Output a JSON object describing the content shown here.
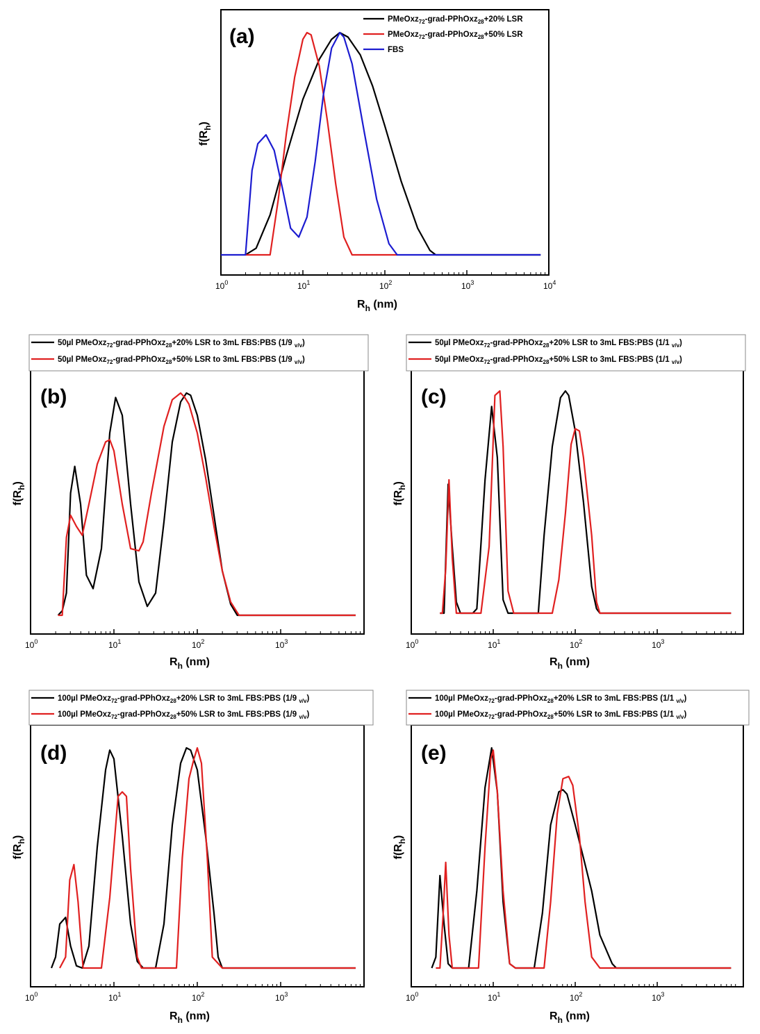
{
  "chart_data": [
    {
      "id": "a",
      "type": "line",
      "panel_label": "(a)",
      "xscale": "log",
      "xlim_exp": [
        0,
        4
      ],
      "ylim": [
        0,
        1
      ],
      "xlabel": {
        "main": "R",
        "sub": "h",
        "unit": " (nm)"
      },
      "ylabel": {
        "main": "f(R",
        "sub": "h",
        "close": ")"
      },
      "ticks": [
        "10^0",
        "10^1",
        "10^2",
        "10^3",
        "10^4"
      ],
      "legend_position": "top-right",
      "legend_framed": false,
      "series": [
        {
          "color": "#000000",
          "legend": {
            "t1": "PMeOxz",
            "s1": "72",
            "t2": "-grad-PPhOxz",
            "s2": "28",
            "t3": "+20% LSR",
            "s3": "",
            "t4": ""
          },
          "x": [
            0.3,
            0.43,
            0.6,
            0.8,
            1.0,
            1.2,
            1.35,
            1.45,
            1.55,
            1.7,
            1.85,
            2.0,
            2.2,
            2.4,
            2.55,
            2.62,
            3.9
          ],
          "y": [
            0.0,
            0.03,
            0.18,
            0.45,
            0.7,
            0.88,
            0.97,
            1.0,
            0.98,
            0.9,
            0.76,
            0.58,
            0.33,
            0.12,
            0.02,
            0.0,
            0.0
          ]
        },
        {
          "color": "#e02020",
          "legend": {
            "t1": "PMeOxz",
            "s1": "72",
            "t2": "-grad-PPhOxz",
            "s2": "28",
            "t3": "+50% LSR",
            "s3": "",
            "t4": ""
          },
          "x": [
            0.3,
            0.6,
            0.7,
            0.8,
            0.9,
            1.0,
            1.05,
            1.1,
            1.2,
            1.3,
            1.4,
            1.5,
            1.6,
            1.62,
            2.15
          ],
          "y": [
            0.0,
            0.0,
            0.25,
            0.55,
            0.8,
            0.97,
            1.0,
            0.99,
            0.85,
            0.6,
            0.32,
            0.08,
            0.0,
            0.0,
            0.0
          ]
        },
        {
          "color": "#1c1cd0",
          "legend": {
            "t1": "FBS",
            "s1": "",
            "t2": "",
            "s2": "",
            "t3": "",
            "s3": "",
            "t4": ""
          },
          "x": [
            0.0,
            0.3,
            0.38,
            0.45,
            0.55,
            0.65,
            0.75,
            0.85,
            0.95,
            1.05,
            1.15,
            1.25,
            1.35,
            1.45,
            1.5,
            1.6,
            1.75,
            1.9,
            2.05,
            2.15,
            3.9
          ],
          "y": [
            0.0,
            0.0,
            0.38,
            0.5,
            0.54,
            0.47,
            0.3,
            0.12,
            0.08,
            0.17,
            0.42,
            0.72,
            0.93,
            1.0,
            0.98,
            0.86,
            0.55,
            0.25,
            0.05,
            0.0,
            0.0
          ]
        }
      ]
    },
    {
      "id": "b",
      "type": "line",
      "panel_label": "(b)",
      "xscale": "log",
      "xlim_exp": [
        0,
        4
      ],
      "ylim": [
        0,
        1
      ],
      "xlabel": {
        "main": "R",
        "sub": "h",
        "unit": " (nm)"
      },
      "ylabel": {
        "main": "f(R",
        "sub": "h",
        "close": ")"
      },
      "ticks": [
        "10^0",
        "10^1",
        "10^2",
        "10^3"
      ],
      "legend_position": "top-left-outside",
      "legend_framed": true,
      "series": [
        {
          "color": "#000000",
          "legend": {
            "t1": "50µl PMeOxz",
            "s1": "72",
            "t2": "-grad-PPhOxz",
            "s2": "28",
            "t3": "+20% LSR to 3mL FBS:PBS (1/9 ",
            "s3": "v/v",
            "t4": ")"
          },
          "x": [
            0.33,
            0.38,
            0.43,
            0.48,
            0.53,
            0.6,
            0.67,
            0.75,
            0.85,
            0.95,
            1.02,
            1.1,
            1.2,
            1.3,
            1.4,
            1.5,
            1.6,
            1.7,
            1.8,
            1.87,
            1.92,
            2.0,
            2.1,
            2.2,
            2.3,
            2.4,
            2.48,
            2.55,
            3.9
          ],
          "y": [
            0.0,
            0.02,
            0.1,
            0.55,
            0.67,
            0.5,
            0.18,
            0.12,
            0.3,
            0.82,
            0.98,
            0.9,
            0.5,
            0.15,
            0.04,
            0.1,
            0.42,
            0.78,
            0.96,
            1.0,
            0.99,
            0.9,
            0.7,
            0.45,
            0.2,
            0.05,
            0.0,
            0.0,
            0.0
          ]
        },
        {
          "color": "#e02020",
          "legend": {
            "t1": "50µl PMeOxz",
            "s1": "72",
            "t2": "-grad-PPhOxz",
            "s2": "28",
            "t3": "+50% LSR to 3mL FBS:PBS (1/9 ",
            "s3": "v/v",
            "t4": ")"
          },
          "x": [
            0.33,
            0.38,
            0.43,
            0.48,
            0.55,
            0.62,
            0.7,
            0.8,
            0.9,
            0.95,
            1.0,
            1.1,
            1.2,
            1.3,
            1.35,
            1.45,
            1.6,
            1.7,
            1.8,
            1.85,
            1.9,
            2.0,
            2.1,
            2.2,
            2.3,
            2.4,
            2.5,
            2.55,
            3.9
          ],
          "y": [
            0.0,
            0.0,
            0.35,
            0.45,
            0.4,
            0.36,
            0.5,
            0.68,
            0.78,
            0.79,
            0.74,
            0.5,
            0.3,
            0.29,
            0.33,
            0.55,
            0.85,
            0.97,
            1.0,
            0.98,
            0.95,
            0.82,
            0.62,
            0.4,
            0.2,
            0.06,
            0.0,
            0.0,
            0.0
          ]
        }
      ]
    },
    {
      "id": "c",
      "type": "line",
      "panel_label": "(c)",
      "xscale": "log",
      "xlim_exp": [
        0,
        4
      ],
      "ylim": [
        0,
        1
      ],
      "xlabel": {
        "main": "R",
        "sub": "h",
        "unit": " (nm)"
      },
      "ylabel": {
        "main": "f(R",
        "sub": "h",
        "close": ")"
      },
      "ticks": [
        "10^0",
        "10^1",
        "10^2",
        "10^3"
      ],
      "legend_position": "top-left-outside",
      "legend_framed": true,
      "series": [
        {
          "color": "#000000",
          "legend": {
            "t1": "50µl PMeOxz",
            "s1": "72",
            "t2": "-grad-PPhOxz",
            "s2": "28",
            "t3": "+20% LSR to 3mL FBS:PBS (1/1 ",
            "s3": "v/v",
            "t4": ")"
          },
          "x": [
            0.35,
            0.4,
            0.45,
            0.5,
            0.55,
            0.6,
            0.65,
            0.75,
            0.8,
            0.9,
            0.98,
            1.05,
            1.12,
            1.18,
            1.25,
            1.55,
            1.62,
            1.72,
            1.82,
            1.88,
            1.92,
            2.0,
            2.1,
            2.2,
            2.26,
            2.3,
            3.9
          ],
          "y": [
            0.0,
            0.0,
            0.58,
            0.3,
            0.05,
            0.0,
            0.0,
            0.0,
            0.02,
            0.6,
            0.93,
            0.7,
            0.06,
            0.0,
            0.0,
            0.0,
            0.35,
            0.75,
            0.97,
            1.0,
            0.98,
            0.82,
            0.5,
            0.12,
            0.02,
            0.0,
            0.0
          ]
        },
        {
          "color": "#e02020",
          "legend": {
            "t1": "50µl PMeOxz",
            "s1": "72",
            "t2": "-grad-PPhOxz",
            "s2": "28",
            "t3": "+50% LSR to 3mL FBS:PBS (1/1 ",
            "s3": "v/v",
            "t4": ")"
          },
          "x": [
            0.35,
            0.38,
            0.42,
            0.46,
            0.5,
            0.55,
            0.6,
            0.85,
            0.95,
            1.02,
            1.08,
            1.12,
            1.18,
            1.25,
            1.72,
            1.8,
            1.88,
            1.95,
            2.0,
            2.05,
            2.1,
            2.2,
            2.26,
            2.3,
            3.9
          ],
          "y": [
            0.0,
            0.0,
            0.2,
            0.6,
            0.25,
            0.0,
            0.0,
            0.0,
            0.3,
            0.98,
            1.0,
            0.75,
            0.1,
            0.0,
            0.0,
            0.15,
            0.45,
            0.76,
            0.83,
            0.82,
            0.7,
            0.35,
            0.05,
            0.0,
            0.0
          ]
        }
      ]
    },
    {
      "id": "d",
      "type": "line",
      "panel_label": "(d)",
      "xscale": "log",
      "xlim_exp": [
        0,
        4
      ],
      "ylim": [
        0,
        1
      ],
      "xlabel": {
        "main": "R",
        "sub": "h",
        "unit": " (nm)"
      },
      "ylabel": {
        "main": "f(R",
        "sub": "h",
        "close": ")"
      },
      "ticks": [
        "10^0",
        "10^1",
        "10^2",
        "10^3"
      ],
      "legend_position": "top-left-outside",
      "legend_framed": true,
      "series": [
        {
          "color": "#000000",
          "legend": {
            "t1": "100µl PMeOxz",
            "s1": "72",
            "t2": "-grad-PPhOxz",
            "s2": "28",
            "t3": "+20% LSR to 3mL FBS:PBS (1/9 ",
            "s3": "v/v",
            "t4": ")"
          },
          "x": [
            0.25,
            0.3,
            0.35,
            0.42,
            0.48,
            0.55,
            0.62,
            0.7,
            0.8,
            0.9,
            0.95,
            1.0,
            1.1,
            1.2,
            1.28,
            1.35,
            1.5,
            1.6,
            1.7,
            1.8,
            1.87,
            1.92,
            2.0,
            2.1,
            2.2,
            2.25,
            2.3,
            3.9
          ],
          "y": [
            0.0,
            0.05,
            0.2,
            0.23,
            0.1,
            0.01,
            0.0,
            0.1,
            0.55,
            0.9,
            0.99,
            0.95,
            0.6,
            0.2,
            0.03,
            0.0,
            0.0,
            0.2,
            0.65,
            0.93,
            1.0,
            0.99,
            0.9,
            0.6,
            0.25,
            0.05,
            0.0,
            0.0
          ]
        },
        {
          "color": "#e02020",
          "legend": {
            "t1": "100µl PMeOxz",
            "s1": "72",
            "t2": "-grad-PPhOxz",
            "s2": "28",
            "t3": "+50% LSR to 3mL FBS:PBS (1/9 ",
            "s3": "v/v",
            "t4": ")"
          },
          "x": [
            0.35,
            0.42,
            0.47,
            0.52,
            0.57,
            0.63,
            0.85,
            0.95,
            1.05,
            1.1,
            1.15,
            1.2,
            1.28,
            1.33,
            1.75,
            1.82,
            1.9,
            1.96,
            2.0,
            2.05,
            2.12,
            2.18,
            2.3,
            3.9
          ],
          "y": [
            0.0,
            0.05,
            0.4,
            0.47,
            0.3,
            0.0,
            0.0,
            0.32,
            0.78,
            0.8,
            0.78,
            0.45,
            0.05,
            0.0,
            0.0,
            0.5,
            0.86,
            0.95,
            1.0,
            0.93,
            0.5,
            0.05,
            0.0,
            0.0
          ]
        }
      ]
    },
    {
      "id": "e",
      "type": "line",
      "panel_label": "(e)",
      "xscale": "log",
      "xlim_exp": [
        0,
        4
      ],
      "ylim": [
        0,
        1
      ],
      "xlabel": {
        "main": "R",
        "sub": "h",
        "unit": " (nm)"
      },
      "ylabel": {
        "main": "f(R",
        "sub": "h",
        "close": ")"
      },
      "ticks": [
        "10^0",
        "10^1",
        "10^2",
        "10^3"
      ],
      "legend_position": "top-left-outside",
      "legend_framed": true,
      "series": [
        {
          "color": "#000000",
          "legend": {
            "t1": "100µl PMeOxz",
            "s1": "72",
            "t2": "-grad-PPhOxz",
            "s2": "28",
            "t3": "+20% LSR to 3mL FBS:PBS (1/1 ",
            "s3": "v/v",
            "t4": ")"
          },
          "x": [
            0.25,
            0.3,
            0.35,
            0.4,
            0.45,
            0.5,
            0.7,
            0.8,
            0.9,
            0.98,
            1.05,
            1.12,
            1.2,
            1.27,
            1.5,
            1.6,
            1.7,
            1.8,
            1.85,
            1.9,
            2.0,
            2.1,
            2.2,
            2.3,
            2.45,
            2.5,
            3.9
          ],
          "y": [
            0.0,
            0.05,
            0.42,
            0.2,
            0.02,
            0.0,
            0.0,
            0.35,
            0.82,
            1.0,
            0.8,
            0.3,
            0.02,
            0.0,
            0.0,
            0.25,
            0.65,
            0.8,
            0.81,
            0.79,
            0.65,
            0.5,
            0.35,
            0.15,
            0.02,
            0.0,
            0.0
          ]
        },
        {
          "color": "#e02020",
          "legend": {
            "t1": "100µl PMeOxz",
            "s1": "72",
            "t2": "-grad-PPhOxz",
            "s2": "28",
            "t3": "+50% LSR to 3mL FBS:PBS (1/1 ",
            "s3": "v/v",
            "t4": ")"
          },
          "x": [
            0.3,
            0.35,
            0.39,
            0.42,
            0.46,
            0.5,
            0.82,
            0.9,
            0.97,
            1.0,
            1.05,
            1.12,
            1.2,
            1.27,
            1.62,
            1.7,
            1.78,
            1.85,
            1.92,
            1.97,
            2.05,
            2.12,
            2.2,
            2.3,
            3.9
          ],
          "y": [
            0.0,
            0.0,
            0.25,
            0.48,
            0.15,
            0.0,
            0.0,
            0.55,
            0.95,
            0.99,
            0.8,
            0.35,
            0.02,
            0.0,
            0.0,
            0.3,
            0.7,
            0.86,
            0.87,
            0.83,
            0.6,
            0.3,
            0.05,
            0.0,
            0.0
          ]
        }
      ]
    }
  ]
}
